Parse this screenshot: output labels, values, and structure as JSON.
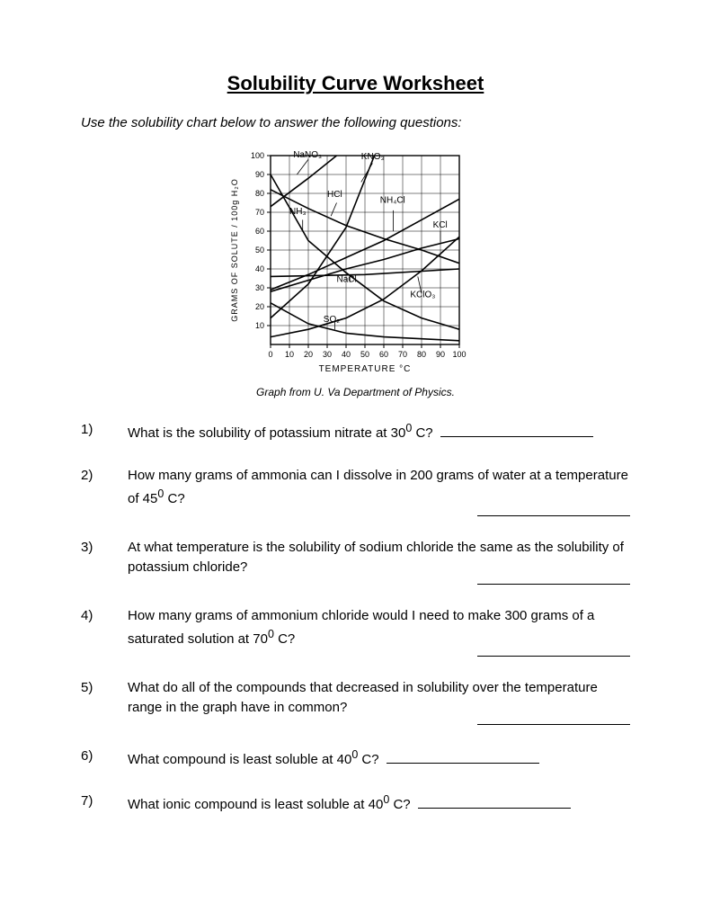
{
  "title": "Solubility Curve Worksheet",
  "instruction": "Use the solubility chart below to answer the following questions:",
  "caption": "Graph from U. Va Department of Physics.",
  "chart": {
    "type": "line",
    "xlim": [
      0,
      100
    ],
    "ylim": [
      0,
      100
    ],
    "xtick_step": 10,
    "ytick_step": 10,
    "x_ticks": [
      "0",
      "10",
      "20",
      "30",
      "40",
      "50",
      "60",
      "70",
      "80",
      "90",
      "100"
    ],
    "y_ticks": [
      "10",
      "20",
      "30",
      "40",
      "50",
      "60",
      "70",
      "80",
      "90",
      "100"
    ],
    "xlabel": "TEMPERATURE  °C",
    "ylabel": "GRAMS  OF  SOLUTE / 100g  H₂O",
    "background_color": "#ffffff",
    "grid_color": "#000000",
    "line_color": "#000000",
    "line_width": 1.6,
    "grid_width": 0.5,
    "curves": {
      "NaNO3": {
        "label": "NaNO₃",
        "points": [
          [
            0,
            73
          ],
          [
            20,
            88
          ],
          [
            35,
            100
          ]
        ]
      },
      "KNO3": {
        "label": "KNO₃",
        "points": [
          [
            0,
            14
          ],
          [
            20,
            32
          ],
          [
            40,
            62
          ],
          [
            55,
            100
          ]
        ]
      },
      "HCl": {
        "label": "HCl",
        "points": [
          [
            0,
            82
          ],
          [
            20,
            72
          ],
          [
            40,
            63
          ],
          [
            60,
            56
          ],
          [
            80,
            50
          ],
          [
            100,
            43
          ]
        ]
      },
      "NH3": {
        "label": "NH₃",
        "points": [
          [
            0,
            90
          ],
          [
            20,
            55
          ],
          [
            40,
            38
          ],
          [
            60,
            23
          ],
          [
            80,
            14
          ],
          [
            100,
            8
          ]
        ]
      },
      "NH4Cl": {
        "label": "NH₄Cl",
        "points": [
          [
            0,
            29
          ],
          [
            20,
            37
          ],
          [
            40,
            46
          ],
          [
            60,
            55
          ],
          [
            80,
            66
          ],
          [
            100,
            77
          ]
        ]
      },
      "KCl": {
        "label": "KCl",
        "points": [
          [
            0,
            28
          ],
          [
            20,
            34
          ],
          [
            40,
            40
          ],
          [
            60,
            45
          ],
          [
            80,
            51
          ],
          [
            100,
            56
          ]
        ]
      },
      "NaCl": {
        "label": "NaCl",
        "points": [
          [
            0,
            36
          ],
          [
            50,
            37
          ],
          [
            100,
            40
          ]
        ]
      },
      "KClO3": {
        "label": "KClO₃",
        "points": [
          [
            0,
            4
          ],
          [
            20,
            8
          ],
          [
            40,
            14
          ],
          [
            60,
            24
          ],
          [
            80,
            39
          ],
          [
            100,
            57
          ]
        ]
      },
      "SO2": {
        "label": "SO₂",
        "points": [
          [
            0,
            22
          ],
          [
            20,
            11
          ],
          [
            40,
            6
          ],
          [
            60,
            4
          ],
          [
            80,
            3
          ],
          [
            100,
            2
          ]
        ]
      }
    }
  },
  "questions": [
    {
      "num": "1)",
      "text_html": "What is the solubility of potassium nitrate at 30<sup>0</sup> C?",
      "blank": "inline"
    },
    {
      "num": "2)",
      "text_html": "How many grams of ammonia can I dissolve in 200 grams of water at a temperature of 45<sup>0</sup> C?",
      "blank": "below"
    },
    {
      "num": "3)",
      "text_html": "At what temperature is the solubility of sodium chloride the same as the solubility of potassium chloride?",
      "blank": "below"
    },
    {
      "num": "4)",
      "text_html": "How many grams of ammonium chloride would I need to make 300 grams of a saturated solution at 70<sup>0</sup> C?",
      "blank": "below"
    },
    {
      "num": "5)",
      "text_html": "What do all of the compounds that decreased in solubility over the temperature range in the graph have in common?",
      "blank": "below"
    },
    {
      "num": "6)",
      "text_html": "What compound is least soluble at 40<sup>0</sup> C?",
      "blank": "inline"
    },
    {
      "num": "7)",
      "text_html": "What ionic compound is least soluble at 40<sup>0</sup> C?",
      "blank": "inline"
    }
  ]
}
